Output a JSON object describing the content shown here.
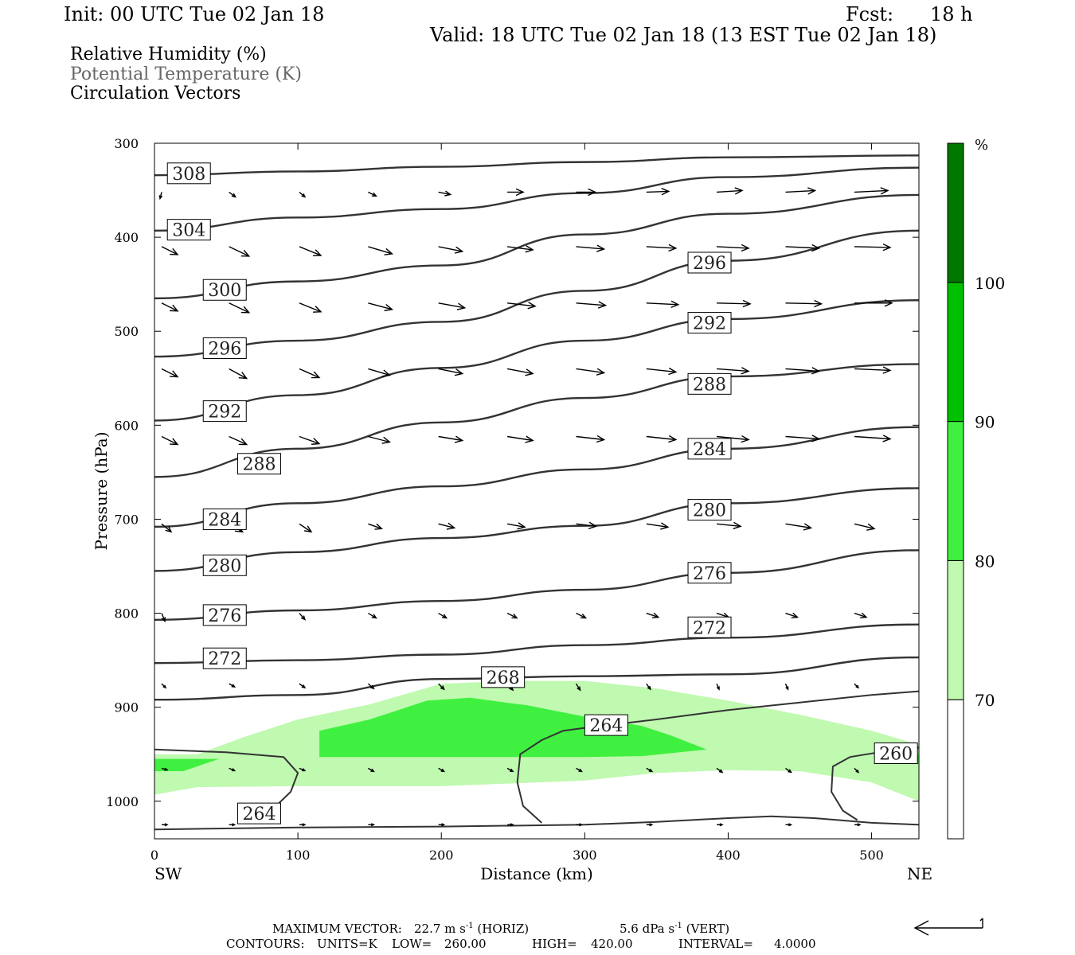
{
  "header": {
    "init": "Init: 00 UTC Tue 02 Jan 18",
    "fcst_label": "Fcst:",
    "fcst_value": "18 h",
    "valid": "Valid: 18 UTC Tue 02 Jan 18 (13 EST Tue 02 Jan 18)"
  },
  "legend_text": {
    "rh": "Relative Humidity (%)",
    "theta": "Potential Temperature (K)",
    "vectors": "Circulation Vectors"
  },
  "colors": {
    "rh_70": "#c0f9b0",
    "rh_80": "#40f040",
    "rh_90": "#00c000",
    "rh_100": "#007800",
    "contour": "#333333",
    "label_border": "#000000"
  },
  "chart_data": {
    "type": "cross-section",
    "xlabel": "Distance (km)",
    "ylabel": "Pressure (hPa)",
    "x_ticks": [
      0,
      100,
      200,
      300,
      400,
      500
    ],
    "y_ticks": [
      300,
      400,
      500,
      600,
      700,
      800,
      900,
      1000
    ],
    "xlim": [
      0,
      533
    ],
    "ylim": [
      300,
      1040
    ],
    "x_end_labels": {
      "left": "SW",
      "right": "NE"
    },
    "colorbar": {
      "unit": "%",
      "levels": [
        70,
        80,
        90,
        100
      ],
      "colors": [
        "#ffffff",
        "#c0f9b0",
        "#40f040",
        "#00c000",
        "#007800"
      ]
    },
    "rh_regions": [
      {
        "level": 70,
        "points": [
          [
            0,
            950
          ],
          [
            30,
            950
          ],
          [
            60,
            933
          ],
          [
            100,
            913
          ],
          [
            150,
            897
          ],
          [
            200,
            875
          ],
          [
            250,
            872
          ],
          [
            300,
            872
          ],
          [
            350,
            880
          ],
          [
            400,
            893
          ],
          [
            450,
            908
          ],
          [
            500,
            925
          ],
          [
            533,
            940
          ],
          [
            533,
            1000
          ],
          [
            500,
            980
          ],
          [
            450,
            968
          ],
          [
            400,
            967
          ],
          [
            350,
            970
          ],
          [
            300,
            978
          ],
          [
            200,
            984
          ],
          [
            100,
            984
          ],
          [
            30,
            985
          ],
          [
            0,
            993
          ]
        ]
      },
      {
        "level": 80,
        "points": [
          [
            115,
            925
          ],
          [
            150,
            913
          ],
          [
            190,
            893
          ],
          [
            220,
            890
          ],
          [
            260,
            898
          ],
          [
            300,
            910
          ],
          [
            340,
            920
          ],
          [
            360,
            930
          ],
          [
            385,
            945
          ],
          [
            340,
            952
          ],
          [
            300,
            953
          ],
          [
            200,
            953
          ],
          [
            115,
            953
          ]
        ]
      },
      {
        "level": 80,
        "points": [
          [
            0,
            955
          ],
          [
            45,
            955
          ],
          [
            20,
            968
          ],
          [
            0,
            968
          ]
        ]
      },
      {
        "level": 80,
        "points": [
          [
            527,
            950
          ],
          [
            533,
            950
          ],
          [
            533,
            960
          ],
          [
            527,
            960
          ]
        ]
      }
    ],
    "theta_contours": [
      {
        "label": 308,
        "p": [
          334,
          330,
          325,
          320,
          315,
          313
        ]
      },
      {
        "label": 304,
        "p": [
          393,
          379,
          370,
          353,
          336,
          326
        ]
      },
      {
        "label": 300,
        "p": [
          465,
          447,
          430,
          397,
          375,
          355
        ]
      },
      {
        "label": 296,
        "p": [
          527,
          510,
          490,
          457,
          425,
          393
        ]
      },
      {
        "label": 292,
        "p": [
          595,
          568,
          539,
          510,
          487,
          467
        ]
      },
      {
        "label": 288,
        "p": [
          655,
          625,
          597,
          571,
          548,
          535
        ]
      },
      {
        "label": 284,
        "p": [
          708,
          683,
          665,
          647,
          625,
          602
        ]
      },
      {
        "label": 280,
        "p": [
          755,
          735,
          720,
          707,
          683,
          667
        ]
      },
      {
        "label": 276,
        "p": [
          807,
          797,
          787,
          775,
          757,
          733
        ]
      },
      {
        "label": 272,
        "p": [
          853,
          850,
          844,
          834,
          826,
          812
        ]
      },
      {
        "label": 268,
        "p": [
          892,
          887,
          870,
          867,
          865,
          847
        ]
      }
    ],
    "theta_labels": [
      {
        "text": "308",
        "x": 24,
        "p": 332
      },
      {
        "text": "304",
        "x": 24,
        "p": 392
      },
      {
        "text": "300",
        "x": 49,
        "p": 456
      },
      {
        "text": "296",
        "x": 49,
        "p": 518
      },
      {
        "text": "292",
        "x": 49,
        "p": 585
      },
      {
        "text": "288",
        "x": 73,
        "p": 641
      },
      {
        "text": "284",
        "x": 49,
        "p": 700
      },
      {
        "text": "280",
        "x": 49,
        "p": 749
      },
      {
        "text": "276",
        "x": 49,
        "p": 802
      },
      {
        "text": "272",
        "x": 49,
        "p": 848
      },
      {
        "text": "296",
        "x": 387,
        "p": 427
      },
      {
        "text": "292",
        "x": 387,
        "p": 491
      },
      {
        "text": "288",
        "x": 387,
        "p": 556
      },
      {
        "text": "284",
        "x": 387,
        "p": 625
      },
      {
        "text": "280",
        "x": 387,
        "p": 690
      },
      {
        "text": "276",
        "x": 387,
        "p": 757
      },
      {
        "text": "272",
        "x": 387,
        "p": 815
      },
      {
        "text": "268",
        "x": 243,
        "p": 868
      },
      {
        "text": "264",
        "x": 315,
        "p": 919
      },
      {
        "text": "264",
        "x": 73,
        "p": 1013
      },
      {
        "text": "260",
        "x": 517,
        "p": 949
      }
    ],
    "low_contours": [
      {
        "label": 264,
        "points": [
          [
            0,
            945
          ],
          [
            50,
            948
          ],
          [
            90,
            953
          ],
          [
            100,
            970
          ],
          [
            95,
            990
          ],
          [
            80,
            1012
          ]
        ]
      },
      {
        "label": 264,
        "points": [
          [
            270,
            1023
          ],
          [
            257,
            1005
          ],
          [
            253,
            980
          ],
          [
            255,
            950
          ],
          [
            270,
            935
          ],
          [
            285,
            925
          ],
          [
            300,
            922
          ],
          [
            350,
            913
          ],
          [
            400,
            903
          ],
          [
            450,
            895
          ],
          [
            500,
            887
          ],
          [
            533,
            883
          ]
        ]
      },
      {
        "label": 260,
        "points": [
          [
            490,
            1020
          ],
          [
            480,
            1010
          ],
          [
            472,
            990
          ],
          [
            473,
            963
          ],
          [
            485,
            953
          ],
          [
            505,
            948
          ],
          [
            533,
            943
          ]
        ]
      },
      {
        "label": 264,
        "points": [
          [
            0,
            1030
          ],
          [
            100,
            1028
          ],
          [
            200,
            1027
          ],
          [
            300,
            1025
          ],
          [
            350,
            1022
          ],
          [
            400,
            1018
          ],
          [
            430,
            1016
          ],
          [
            460,
            1018
          ],
          [
            500,
            1023
          ],
          [
            533,
            1025
          ]
        ]
      }
    ],
    "vector_columns": [
      5,
      52,
      101,
      149,
      198,
      246,
      294,
      343,
      392,
      440,
      488
    ],
    "vector_rows": [
      {
        "p": 352,
        "dx": [
          -2,
          8,
          7,
          10,
          15,
          20,
          24,
          28,
          32,
          37,
          42
        ],
        "dy": [
          8,
          6,
          6,
          5,
          3,
          0,
          0,
          -1,
          -2,
          -2,
          -2
        ]
      },
      {
        "p": 410,
        "dx": [
          20,
          25,
          27,
          30,
          30,
          32,
          35,
          37,
          40,
          42,
          45
        ],
        "dy": [
          10,
          12,
          11,
          9,
          6,
          4,
          3,
          2,
          2,
          2,
          1
        ]
      },
      {
        "p": 470,
        "dx": [
          20,
          25,
          27,
          30,
          33,
          35,
          37,
          40,
          42,
          45,
          47
        ],
        "dy": [
          10,
          12,
          11,
          8,
          6,
          4,
          3,
          2,
          1,
          1,
          0
        ]
      },
      {
        "p": 540,
        "dx": [
          20,
          22,
          25,
          27,
          30,
          32,
          35,
          37,
          40,
          42,
          45
        ],
        "dy": [
          10,
          12,
          11,
          8,
          6,
          6,
          5,
          4,
          3,
          3,
          2
        ]
      },
      {
        "p": 612,
        "dx": [
          20,
          22,
          25,
          27,
          30,
          32,
          35,
          37,
          40,
          42,
          45
        ],
        "dy": [
          10,
          10,
          9,
          7,
          5,
          5,
          4,
          4,
          4,
          3,
          3
        ]
      },
      {
        "p": 705,
        "dx": [
          12,
          17,
          15,
          17,
          20,
          22,
          25,
          27,
          30,
          32,
          25
        ],
        "dy": [
          10,
          10,
          10,
          6,
          5,
          4,
          3,
          4,
          3,
          5,
          6
        ]
      },
      {
        "p": 800,
        "dx": [
          4,
          7,
          7,
          10,
          10,
          12,
          12,
          15,
          15,
          15,
          15
        ],
        "dy": [
          10,
          10,
          8,
          6,
          6,
          6,
          6,
          5,
          5,
          5,
          5
        ]
      },
      {
        "p": 875,
        "dx": [
          5,
          7,
          7,
          7,
          7,
          7,
          5,
          5,
          3,
          3,
          5
        ],
        "dy": [
          5,
          4,
          5,
          6,
          7,
          8,
          8,
          7,
          7,
          7,
          5
        ]
      },
      {
        "p": 965,
        "dx": [
          7,
          7,
          7,
          7,
          7,
          7,
          7,
          7,
          7,
          7,
          5
        ],
        "dy": [
          2,
          3,
          3,
          4,
          4,
          4,
          4,
          4,
          5,
          5,
          5
        ]
      },
      {
        "p": 1025,
        "dx": [
          7,
          7,
          7,
          7,
          7,
          7,
          7,
          7,
          7,
          7,
          7
        ],
        "dy": [
          0,
          0,
          0,
          0,
          0,
          0,
          0,
          0,
          0,
          0,
          0
        ]
      }
    ]
  },
  "footer": {
    "max_vector_label": "MAXIMUM VECTOR:",
    "max_vector_h": "22.7 m s",
    "max_vector_h_unit": "(HORIZ)",
    "max_vector_v": "5.6 dPa s",
    "max_vector_v_unit": "(VERT)",
    "exponent": "-1",
    "contours_label": "CONTOURS:",
    "units": "UNITS=K",
    "low_label": "LOW=",
    "low_value": "260.00",
    "high_label": "HIGH=",
    "high_value": "420.00",
    "interval_label": "INTERVAL=",
    "interval_value": "4.0000"
  }
}
